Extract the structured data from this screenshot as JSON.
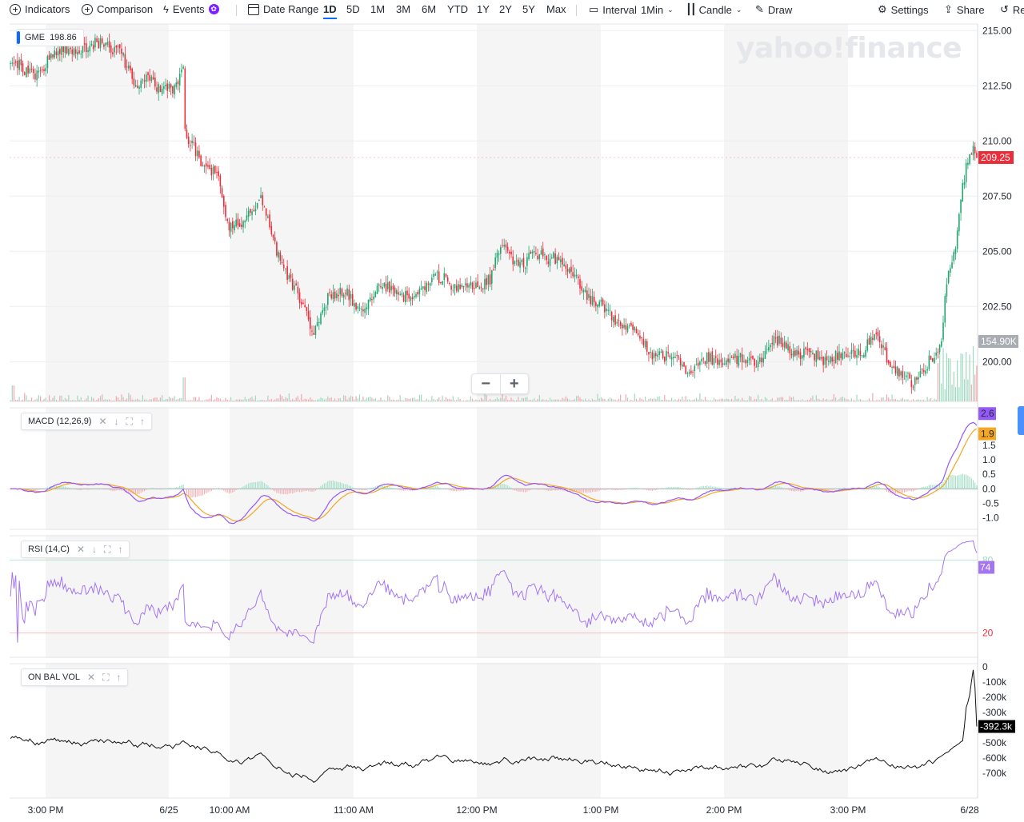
{
  "toolbar": {
    "indicators": "Indicators",
    "comparison": "Comparison",
    "events": "Events",
    "date_range": "Date Range",
    "ranges": [
      "1D",
      "5D",
      "1M",
      "3M",
      "6M",
      "YTD",
      "1Y",
      "2Y",
      "5Y",
      "Max"
    ],
    "active_range": "1D",
    "interval_label": "Interval",
    "interval_value": "1Min",
    "chart_style": "Candle",
    "draw": "Draw",
    "settings": "Settings",
    "share": "Share",
    "reset_partial": "Re"
  },
  "watermark": "yahoo!finance",
  "zoom": {
    "minus": "−",
    "plus": "+"
  },
  "colors": {
    "up": "#21a670",
    "down": "#eb2d3a",
    "macd": "#9558fb",
    "signal": "#f5a623",
    "rsi": "#a475f2",
    "obv": "#111111"
  },
  "chart_data": {
    "type": "candlestick",
    "symbol": "GME",
    "legend_value": "198.86",
    "interval": "1Min",
    "x_ticks": [
      "3:00 PM",
      "6/25",
      "10:00 AM",
      "11:00 AM",
      "12:00 PM",
      "1:00 PM",
      "2:00 PM",
      "3:00 PM",
      "6/28"
    ],
    "price": {
      "y_ticks": [
        "215.00",
        "212.50",
        "210.00",
        "207.50",
        "205.00",
        "202.50",
        "200.00"
      ],
      "ylim": [
        198.2,
        215.3
      ],
      "current": "209.25",
      "volume_label": "154.90K",
      "anchors": [
        [
          0,
          213.8
        ],
        [
          8,
          213.0
        ],
        [
          18,
          213.3
        ],
        [
          30,
          214.3
        ],
        [
          45,
          214.1
        ],
        [
          52,
          214.7
        ],
        [
          62,
          213.9
        ],
        [
          70,
          212.6
        ],
        [
          78,
          212.9
        ],
        [
          85,
          212.1
        ],
        [
          92,
          212.6
        ],
        [
          98,
          213.2
        ],
        [
          99,
          210.2
        ],
        [
          108,
          209.1
        ],
        [
          118,
          208.6
        ],
        [
          123,
          206.0
        ],
        [
          132,
          206.5
        ],
        [
          142,
          207.2
        ],
        [
          150,
          205.5
        ],
        [
          158,
          203.6
        ],
        [
          165,
          202.6
        ],
        [
          172,
          201.6
        ],
        [
          180,
          202.7
        ],
        [
          190,
          203.4
        ],
        [
          198,
          202.1
        ],
        [
          210,
          203.6
        ],
        [
          222,
          202.9
        ],
        [
          232,
          203.2
        ],
        [
          246,
          203.9
        ],
        [
          258,
          203.2
        ],
        [
          272,
          203.8
        ],
        [
          278,
          205.0
        ],
        [
          292,
          204.5
        ],
        [
          308,
          204.9
        ],
        [
          320,
          203.8
        ],
        [
          332,
          202.6
        ],
        [
          345,
          201.9
        ],
        [
          357,
          200.9
        ],
        [
          370,
          200.2
        ],
        [
          385,
          199.8
        ],
        [
          400,
          200.1
        ],
        [
          418,
          199.9
        ],
        [
          430,
          200.6
        ],
        [
          438,
          200.9
        ],
        [
          446,
          200.4
        ],
        [
          458,
          200.2
        ],
        [
          470,
          200.2
        ],
        [
          478,
          200.3
        ],
        [
          490,
          201.1
        ],
        [
          498,
          200.1
        ],
        [
          506,
          199.4
        ],
        [
          512,
          198.8
        ],
        [
          520,
          200.1
        ],
        [
          528,
          200.9
        ],
        [
          531,
          203.5
        ],
        [
          536,
          205.2
        ],
        [
          539,
          207.6
        ],
        [
          542,
          209.0
        ],
        [
          545,
          209.6
        ],
        [
          548,
          209.3
        ]
      ]
    },
    "macd": {
      "label": "MACD (12,26,9)",
      "y_ticks": [
        "1.5",
        "1.0",
        "0.5",
        "0.0",
        "-0.5",
        "-1.0"
      ],
      "ylim": [
        -1.4,
        2.8
      ],
      "macd_value": "2.6",
      "signal_value": "1.9"
    },
    "rsi": {
      "label": "RSI (14,C)",
      "y_ticks": [
        "20"
      ],
      "upper_band": "80",
      "value": "74"
    },
    "obv": {
      "label": "ON BAL VOL",
      "y_ticks": [
        "0",
        "-100k",
        "-200k",
        "-300k",
        "-500k",
        "-600k",
        "-700k"
      ],
      "ylim": [
        -800,
        0
      ],
      "value": "-392.3k"
    }
  }
}
